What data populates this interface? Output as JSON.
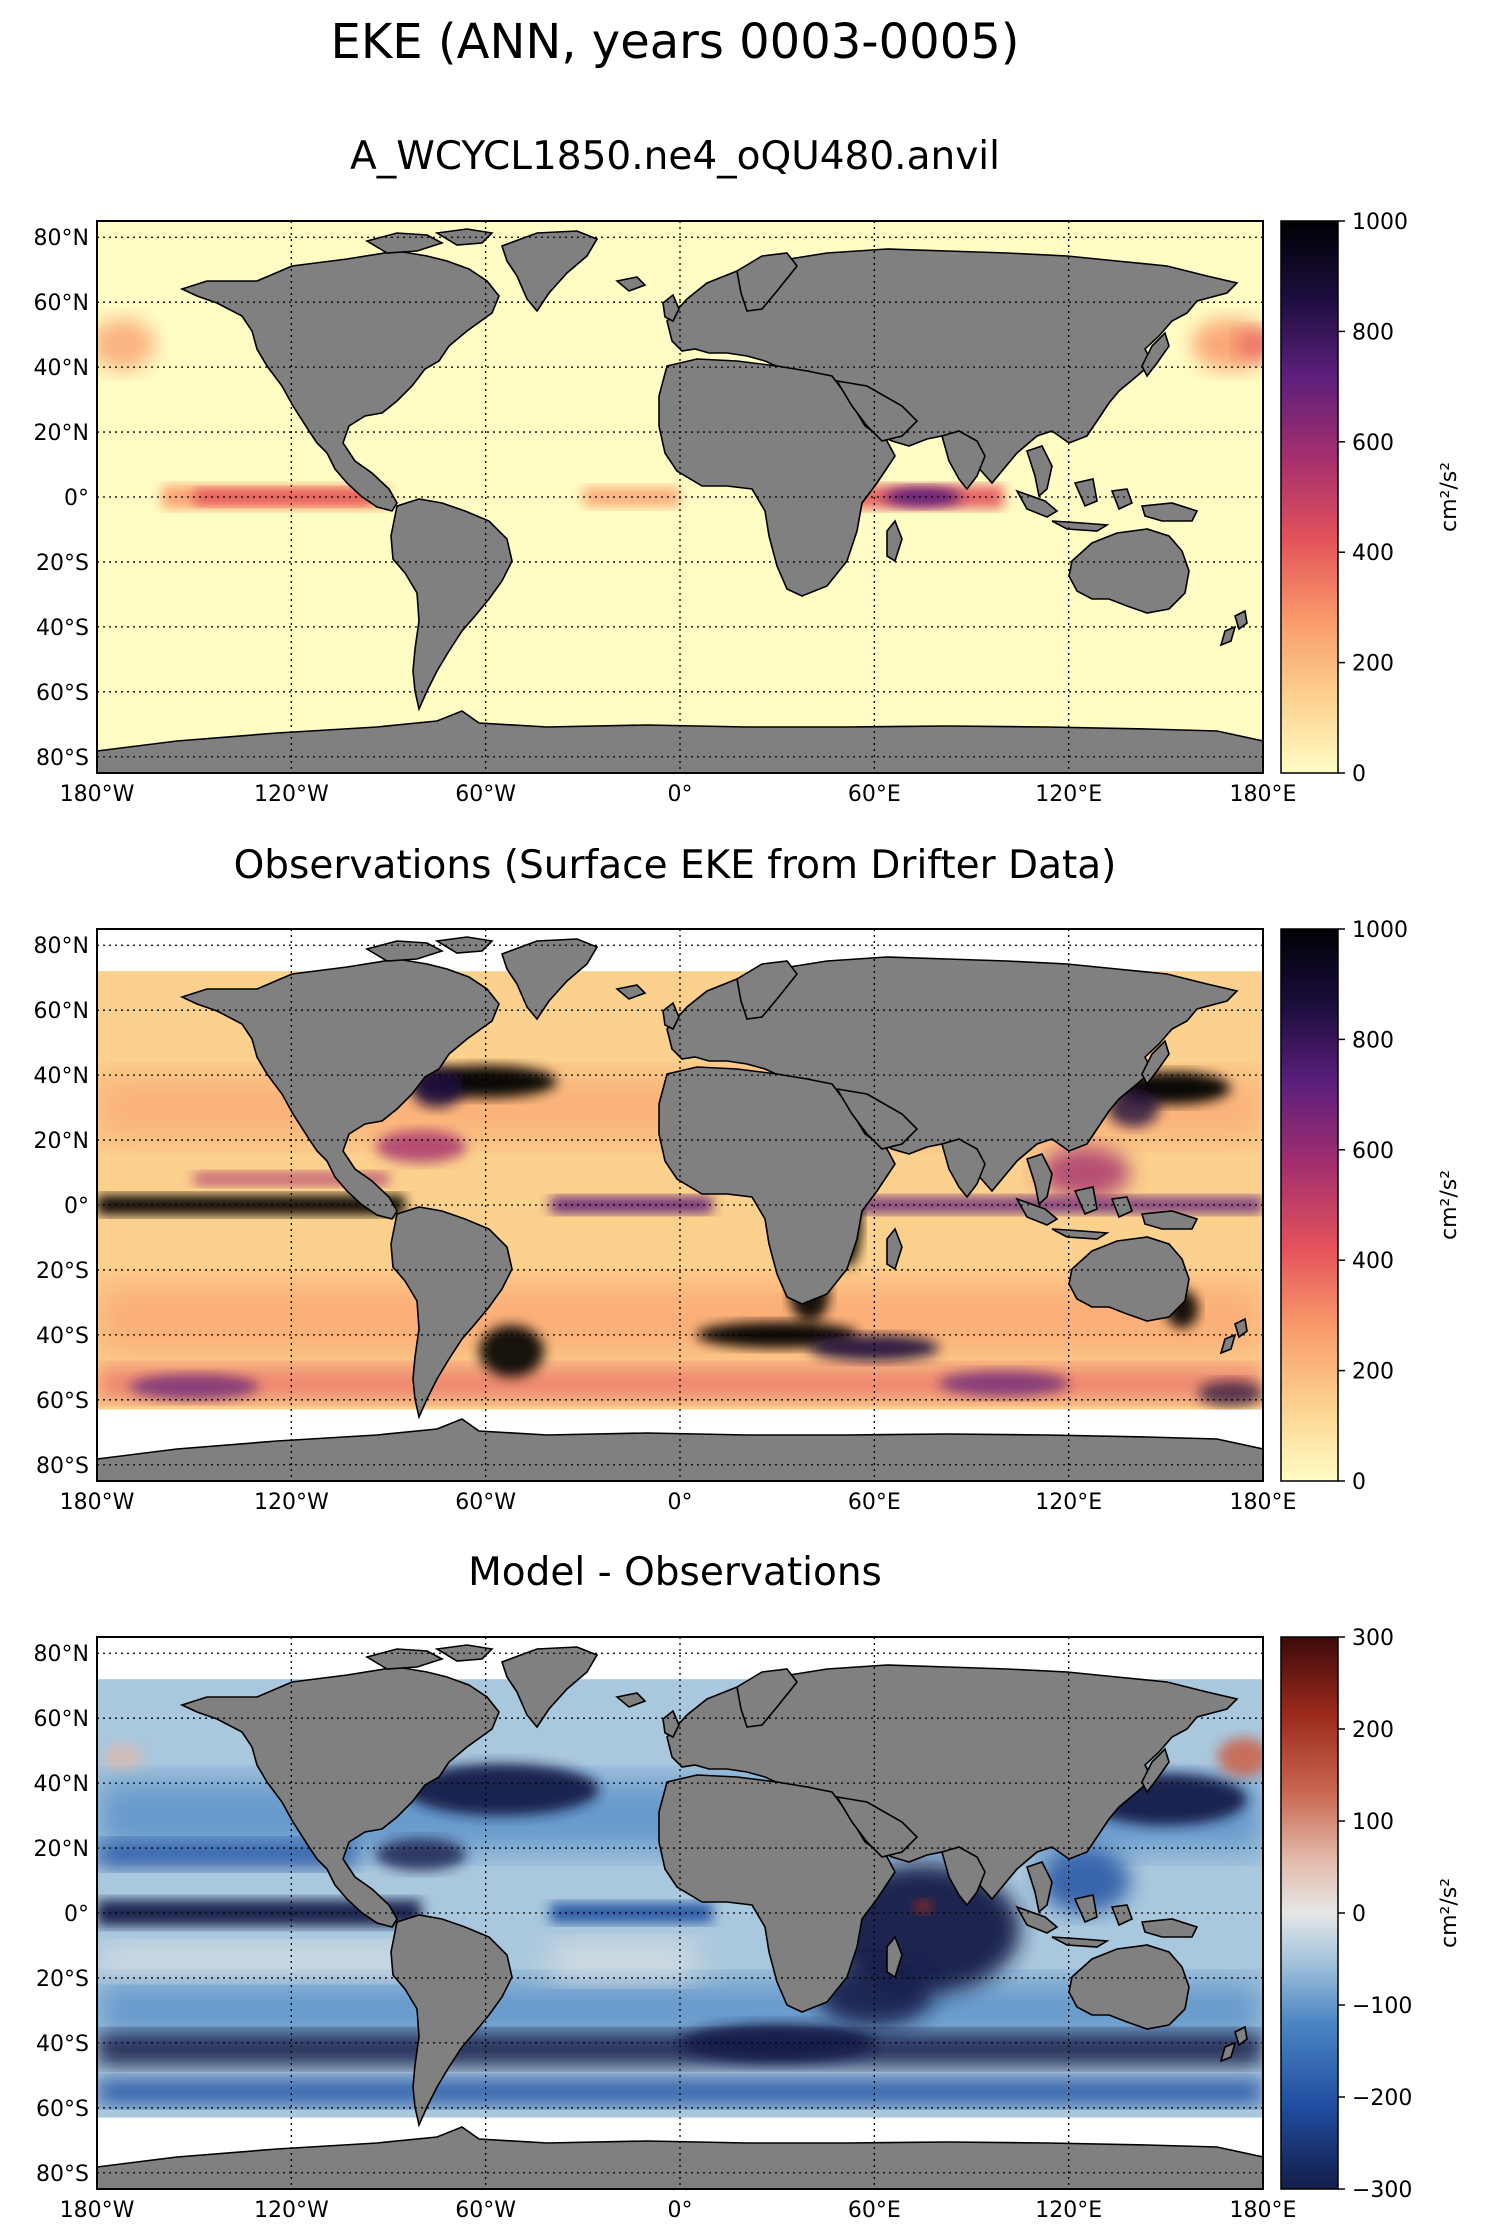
{
  "suptitle": "EKE (ANN, years 0003-0005)",
  "panels": [
    {
      "key": "model",
      "title": "A_WCYCL1850.ne4_oQU480.anvil",
      "colormap": "sequential",
      "colorbar": {
        "min": 0,
        "max": 1000,
        "ticks": [
          "0",
          "200",
          "400",
          "600",
          "800",
          "1000"
        ],
        "unit": "cm²/s²"
      }
    },
    {
      "key": "obs",
      "title": "Observations (Surface EKE from Drifter Data)",
      "colormap": "sequential",
      "colorbar": {
        "min": 0,
        "max": 1000,
        "ticks": [
          "0",
          "200",
          "400",
          "600",
          "800",
          "1000"
        ],
        "unit": "cm²/s²"
      }
    },
    {
      "key": "diff",
      "title": "Model - Observations",
      "colormap": "diverging",
      "colorbar": {
        "min": -300,
        "max": 300,
        "ticks": [
          "−300",
          "−200",
          "−100",
          "0",
          "100",
          "200",
          "300"
        ],
        "unit": "cm²/s²"
      }
    }
  ],
  "map": {
    "lat_ticks": [
      "80°N",
      "60°N",
      "40°N",
      "20°N",
      "0°",
      "20°S",
      "40°S",
      "60°S",
      "80°S"
    ],
    "lon_ticks": [
      "180°W",
      "120°W",
      "60°W",
      "0°",
      "60°E",
      "120°E",
      "180°E"
    ],
    "land_color": "#808080",
    "gridlines": "dotted"
  },
  "colors": {
    "sequential": [
      "#fffdc4",
      "#fcd08d",
      "#f99a6a",
      "#e4535a",
      "#a52f6e",
      "#5c1f7c",
      "#1c0e3e",
      "#000004"
    ],
    "diverging": [
      "#141d4a",
      "#1f4da0",
      "#4b86c4",
      "#a9c7dd",
      "#e6e6e6",
      "#e3b8a8",
      "#c96650",
      "#9b2a1c",
      "#3d0a0a"
    ]
  }
}
